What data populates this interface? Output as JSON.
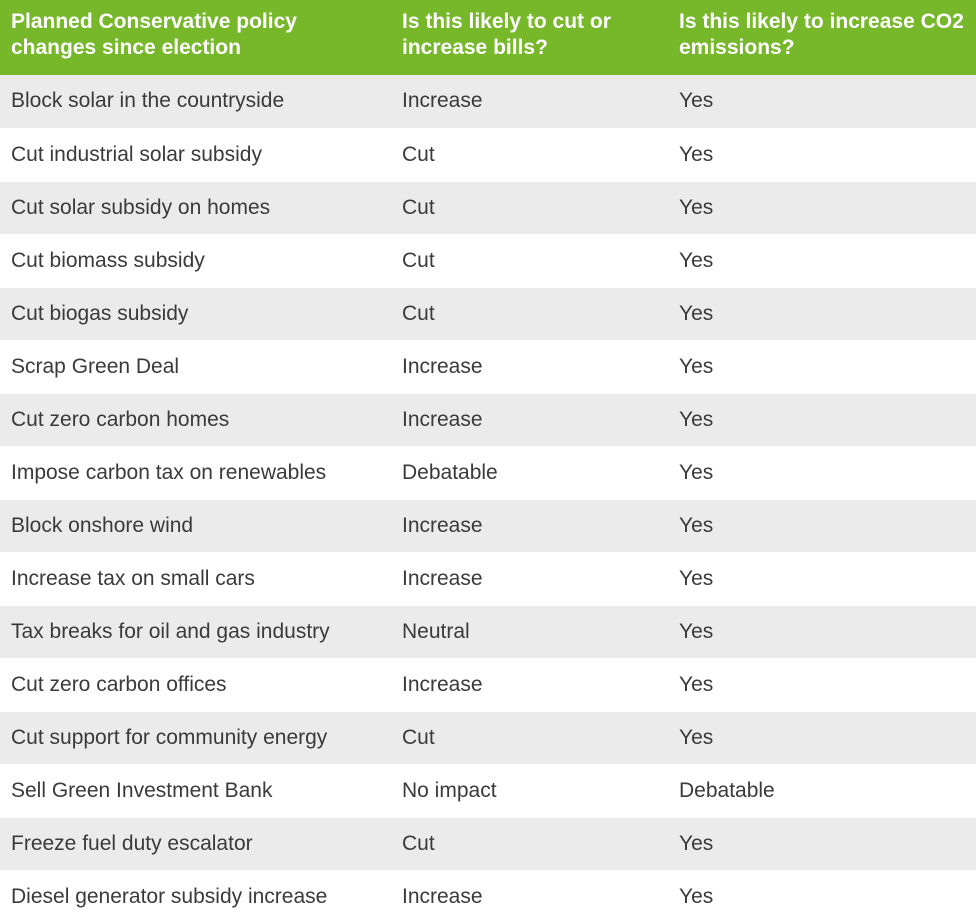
{
  "table": {
    "headers": [
      "Planned Conservative policy changes since election",
      "Is this likely to cut or increase bills?",
      "Is this likely to increase CO2 emissions?"
    ],
    "rows": [
      [
        "Block solar in the countryside",
        "Increase",
        "Yes"
      ],
      [
        "Cut industrial solar subsidy",
        "Cut",
        "Yes"
      ],
      [
        "Cut solar subsidy on homes",
        "Cut",
        "Yes"
      ],
      [
        "Cut biomass subsidy",
        "Cut",
        "Yes"
      ],
      [
        "Cut biogas subsidy",
        "Cut",
        "Yes"
      ],
      [
        "Scrap Green Deal",
        "Increase",
        "Yes"
      ],
      [
        "Cut zero carbon homes",
        "Increase",
        "Yes"
      ],
      [
        "Impose carbon tax on renewables",
        "Debatable",
        "Yes"
      ],
      [
        "Block onshore wind",
        "Increase",
        "Yes"
      ],
      [
        "Increase tax on small cars",
        "Increase",
        "Yes"
      ],
      [
        "Tax breaks for oil and gas industry",
        "Neutral",
        "Yes"
      ],
      [
        "Cut zero carbon offices",
        "Increase",
        "Yes"
      ],
      [
        "Cut support for community energy",
        "Cut",
        "Yes"
      ],
      [
        "Sell Green Investment Bank",
        "No impact",
        "Debatable"
      ],
      [
        "Freeze fuel duty escalator",
        "Cut",
        "Yes"
      ],
      [
        "Diesel generator subsidy increase",
        "Increase",
        "Yes"
      ]
    ]
  },
  "colors": {
    "header_bg": "#76b82a",
    "header_text": "#ffffff",
    "row_odd_bg": "#ebebeb",
    "row_even_bg": "#ffffff",
    "body_text": "#3a3a3a"
  }
}
